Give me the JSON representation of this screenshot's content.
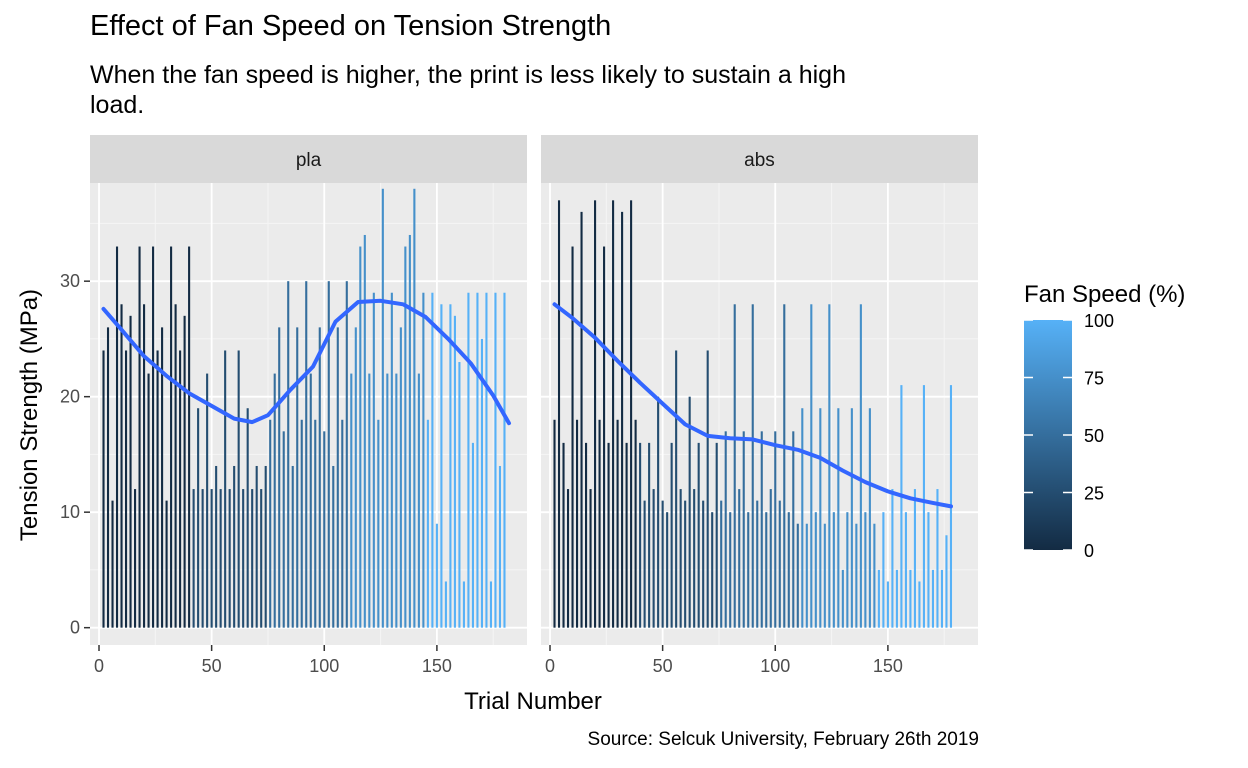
{
  "chart_data": {
    "type": "bar",
    "title": "Effect of Fan Speed on Tension Strength",
    "subtitle": "When the fan speed is higher, the print is less likely to sustain a high load.",
    "caption": "Source: Selcuk University, February 26th 2019",
    "xlabel": "Trial Number",
    "ylabel": "Tension Strength (MPa)",
    "xlim": [
      -4,
      190
    ],
    "ylim": [
      -1.5,
      38.5
    ],
    "x_ticks": [
      0,
      50,
      100,
      150
    ],
    "y_ticks": [
      0,
      10,
      20,
      30
    ],
    "grid": true,
    "color_scale": {
      "title": "Fan Speed (%)",
      "low_color": "#132B43",
      "high_color": "#56B1F7",
      "range": [
        0,
        100
      ],
      "ticks": [
        0,
        25,
        50,
        75,
        100
      ]
    },
    "legend_position": "right",
    "panels": [
      {
        "label": "pla",
        "smooth_color": "#3366FF",
        "bars": [
          {
            "x": 2,
            "y": 24,
            "fan": 0
          },
          {
            "x": 4,
            "y": 26,
            "fan": 0
          },
          {
            "x": 6,
            "y": 11,
            "fan": 0
          },
          {
            "x": 8,
            "y": 33,
            "fan": 0
          },
          {
            "x": 10,
            "y": 28,
            "fan": 0
          },
          {
            "x": 12,
            "y": 24,
            "fan": 0
          },
          {
            "x": 14,
            "y": 27,
            "fan": 0
          },
          {
            "x": 16,
            "y": 12,
            "fan": 0
          },
          {
            "x": 18,
            "y": 33,
            "fan": 0
          },
          {
            "x": 20,
            "y": 28,
            "fan": 0
          },
          {
            "x": 22,
            "y": 22,
            "fan": 0
          },
          {
            "x": 24,
            "y": 33,
            "fan": 0
          },
          {
            "x": 26,
            "y": 24,
            "fan": 0
          },
          {
            "x": 28,
            "y": 26,
            "fan": 0
          },
          {
            "x": 30,
            "y": 11,
            "fan": 0
          },
          {
            "x": 32,
            "y": 33,
            "fan": 0
          },
          {
            "x": 34,
            "y": 28,
            "fan": 0
          },
          {
            "x": 36,
            "y": 24,
            "fan": 0
          },
          {
            "x": 38,
            "y": 27,
            "fan": 0
          },
          {
            "x": 40,
            "y": 33,
            "fan": 0
          },
          {
            "x": 42,
            "y": 12,
            "fan": 25
          },
          {
            "x": 44,
            "y": 19,
            "fan": 25
          },
          {
            "x": 46,
            "y": 12,
            "fan": 25
          },
          {
            "x": 48,
            "y": 22,
            "fan": 25
          },
          {
            "x": 50,
            "y": 12,
            "fan": 25
          },
          {
            "x": 52,
            "y": 14,
            "fan": 25
          },
          {
            "x": 54,
            "y": 12,
            "fan": 25
          },
          {
            "x": 56,
            "y": 24,
            "fan": 25
          },
          {
            "x": 58,
            "y": 12,
            "fan": 25
          },
          {
            "x": 60,
            "y": 14,
            "fan": 25
          },
          {
            "x": 62,
            "y": 24,
            "fan": 25
          },
          {
            "x": 64,
            "y": 12,
            "fan": 25
          },
          {
            "x": 66,
            "y": 19,
            "fan": 25
          },
          {
            "x": 68,
            "y": 12,
            "fan": 25
          },
          {
            "x": 70,
            "y": 14,
            "fan": 25
          },
          {
            "x": 72,
            "y": 12,
            "fan": 25
          },
          {
            "x": 74,
            "y": 14,
            "fan": 25
          },
          {
            "x": 76,
            "y": 18,
            "fan": 50
          },
          {
            "x": 78,
            "y": 22,
            "fan": 50
          },
          {
            "x": 80,
            "y": 26,
            "fan": 50
          },
          {
            "x": 82,
            "y": 17,
            "fan": 50
          },
          {
            "x": 84,
            "y": 30,
            "fan": 50
          },
          {
            "x": 86,
            "y": 14,
            "fan": 50
          },
          {
            "x": 88,
            "y": 26,
            "fan": 50
          },
          {
            "x": 90,
            "y": 18,
            "fan": 50
          },
          {
            "x": 92,
            "y": 30,
            "fan": 50
          },
          {
            "x": 94,
            "y": 22,
            "fan": 50
          },
          {
            "x": 96,
            "y": 18,
            "fan": 50
          },
          {
            "x": 98,
            "y": 26,
            "fan": 50
          },
          {
            "x": 100,
            "y": 17,
            "fan": 50
          },
          {
            "x": 102,
            "y": 30,
            "fan": 50
          },
          {
            "x": 104,
            "y": 14,
            "fan": 50
          },
          {
            "x": 106,
            "y": 26,
            "fan": 50
          },
          {
            "x": 108,
            "y": 18,
            "fan": 50
          },
          {
            "x": 110,
            "y": 30,
            "fan": 50
          },
          {
            "x": 112,
            "y": 22,
            "fan": 75
          },
          {
            "x": 114,
            "y": 26,
            "fan": 75
          },
          {
            "x": 116,
            "y": 33,
            "fan": 75
          },
          {
            "x": 118,
            "y": 34,
            "fan": 75
          },
          {
            "x": 120,
            "y": 22,
            "fan": 75
          },
          {
            "x": 122,
            "y": 29,
            "fan": 75
          },
          {
            "x": 124,
            "y": 18,
            "fan": 75
          },
          {
            "x": 126,
            "y": 38,
            "fan": 75
          },
          {
            "x": 128,
            "y": 22,
            "fan": 75
          },
          {
            "x": 130,
            "y": 29,
            "fan": 75
          },
          {
            "x": 132,
            "y": 22,
            "fan": 75
          },
          {
            "x": 134,
            "y": 26,
            "fan": 75
          },
          {
            "x": 136,
            "y": 33,
            "fan": 75
          },
          {
            "x": 138,
            "y": 34,
            "fan": 75
          },
          {
            "x": 140,
            "y": 38,
            "fan": 75
          },
          {
            "x": 142,
            "y": 22,
            "fan": 75
          },
          {
            "x": 144,
            "y": 29,
            "fan": 75
          },
          {
            "x": 146,
            "y": 18,
            "fan": 100
          },
          {
            "x": 148,
            "y": 29,
            "fan": 100
          },
          {
            "x": 150,
            "y": 9,
            "fan": 100
          },
          {
            "x": 152,
            "y": 28,
            "fan": 100
          },
          {
            "x": 154,
            "y": 4,
            "fan": 100
          },
          {
            "x": 156,
            "y": 28,
            "fan": 100
          },
          {
            "x": 158,
            "y": 27,
            "fan": 100
          },
          {
            "x": 160,
            "y": 23,
            "fan": 100
          },
          {
            "x": 162,
            "y": 4,
            "fan": 100
          },
          {
            "x": 164,
            "y": 29,
            "fan": 100
          },
          {
            "x": 166,
            "y": 16,
            "fan": 100
          },
          {
            "x": 168,
            "y": 29,
            "fan": 100
          },
          {
            "x": 170,
            "y": 25,
            "fan": 100
          },
          {
            "x": 172,
            "y": 29,
            "fan": 100
          },
          {
            "x": 174,
            "y": 4,
            "fan": 100
          },
          {
            "x": 176,
            "y": 29,
            "fan": 100
          },
          {
            "x": 178,
            "y": 14,
            "fan": 100
          },
          {
            "x": 180,
            "y": 29,
            "fan": 100
          }
        ],
        "smooth": [
          {
            "x": 2,
            "y": 27.6
          },
          {
            "x": 10,
            "y": 25.8
          },
          {
            "x": 20,
            "y": 23.5
          },
          {
            "x": 30,
            "y": 21.8
          },
          {
            "x": 40,
            "y": 20.3
          },
          {
            "x": 50,
            "y": 19.2
          },
          {
            "x": 60,
            "y": 18.1
          },
          {
            "x": 68,
            "y": 17.8
          },
          {
            "x": 75,
            "y": 18.4
          },
          {
            "x": 85,
            "y": 20.6
          },
          {
            "x": 95,
            "y": 22.6
          },
          {
            "x": 105,
            "y": 26.5
          },
          {
            "x": 115,
            "y": 28.2
          },
          {
            "x": 125,
            "y": 28.3
          },
          {
            "x": 135,
            "y": 28.0
          },
          {
            "x": 145,
            "y": 26.9
          },
          {
            "x": 155,
            "y": 25.0
          },
          {
            "x": 165,
            "y": 22.9
          },
          {
            "x": 175,
            "y": 20.1
          },
          {
            "x": 182,
            "y": 17.7
          }
        ]
      },
      {
        "label": "abs",
        "smooth_color": "#3366FF",
        "bars": [
          {
            "x": 2,
            "y": 18,
            "fan": 0
          },
          {
            "x": 4,
            "y": 37,
            "fan": 0
          },
          {
            "x": 6,
            "y": 16,
            "fan": 0
          },
          {
            "x": 8,
            "y": 12,
            "fan": 0
          },
          {
            "x": 10,
            "y": 33,
            "fan": 0
          },
          {
            "x": 12,
            "y": 18,
            "fan": 0
          },
          {
            "x": 14,
            "y": 36,
            "fan": 0
          },
          {
            "x": 16,
            "y": 16,
            "fan": 0
          },
          {
            "x": 18,
            "y": 12,
            "fan": 0
          },
          {
            "x": 20,
            "y": 37,
            "fan": 0
          },
          {
            "x": 22,
            "y": 18,
            "fan": 0
          },
          {
            "x": 24,
            "y": 33,
            "fan": 0
          },
          {
            "x": 26,
            "y": 16,
            "fan": 0
          },
          {
            "x": 28,
            "y": 37,
            "fan": 0
          },
          {
            "x": 30,
            "y": 18,
            "fan": 0
          },
          {
            "x": 32,
            "y": 36,
            "fan": 0
          },
          {
            "x": 34,
            "y": 16,
            "fan": 0
          },
          {
            "x": 36,
            "y": 37,
            "fan": 0
          },
          {
            "x": 38,
            "y": 18,
            "fan": 0
          },
          {
            "x": 40,
            "y": 16,
            "fan": 25
          },
          {
            "x": 42,
            "y": 11,
            "fan": 25
          },
          {
            "x": 44,
            "y": 16,
            "fan": 25
          },
          {
            "x": 46,
            "y": 12,
            "fan": 25
          },
          {
            "x": 48,
            "y": 20,
            "fan": 25
          },
          {
            "x": 50,
            "y": 11,
            "fan": 25
          },
          {
            "x": 52,
            "y": 10,
            "fan": 25
          },
          {
            "x": 54,
            "y": 16,
            "fan": 25
          },
          {
            "x": 56,
            "y": 24,
            "fan": 25
          },
          {
            "x": 58,
            "y": 12,
            "fan": 25
          },
          {
            "x": 60,
            "y": 11,
            "fan": 25
          },
          {
            "x": 62,
            "y": 20,
            "fan": 25
          },
          {
            "x": 64,
            "y": 12,
            "fan": 25
          },
          {
            "x": 66,
            "y": 16,
            "fan": 25
          },
          {
            "x": 68,
            "y": 11,
            "fan": 25
          },
          {
            "x": 70,
            "y": 24,
            "fan": 25
          },
          {
            "x": 72,
            "y": 10,
            "fan": 25
          },
          {
            "x": 74,
            "y": 16,
            "fan": 25
          },
          {
            "x": 76,
            "y": 11,
            "fan": 50
          },
          {
            "x": 78,
            "y": 17,
            "fan": 50
          },
          {
            "x": 80,
            "y": 10,
            "fan": 50
          },
          {
            "x": 82,
            "y": 28,
            "fan": 50
          },
          {
            "x": 84,
            "y": 12,
            "fan": 50
          },
          {
            "x": 86,
            "y": 17,
            "fan": 50
          },
          {
            "x": 88,
            "y": 10,
            "fan": 50
          },
          {
            "x": 90,
            "y": 28,
            "fan": 50
          },
          {
            "x": 92,
            "y": 11,
            "fan": 50
          },
          {
            "x": 94,
            "y": 17,
            "fan": 50
          },
          {
            "x": 96,
            "y": 10,
            "fan": 50
          },
          {
            "x": 98,
            "y": 12,
            "fan": 50
          },
          {
            "x": 100,
            "y": 17,
            "fan": 50
          },
          {
            "x": 102,
            "y": 11,
            "fan": 50
          },
          {
            "x": 104,
            "y": 28,
            "fan": 50
          },
          {
            "x": 106,
            "y": 10,
            "fan": 50
          },
          {
            "x": 108,
            "y": 17,
            "fan": 50
          },
          {
            "x": 110,
            "y": 9,
            "fan": 50
          },
          {
            "x": 112,
            "y": 19,
            "fan": 75
          },
          {
            "x": 114,
            "y": 9,
            "fan": 75
          },
          {
            "x": 116,
            "y": 28,
            "fan": 75
          },
          {
            "x": 118,
            "y": 10,
            "fan": 75
          },
          {
            "x": 120,
            "y": 19,
            "fan": 75
          },
          {
            "x": 122,
            "y": 9,
            "fan": 75
          },
          {
            "x": 124,
            "y": 28,
            "fan": 75
          },
          {
            "x": 126,
            "y": 10,
            "fan": 75
          },
          {
            "x": 128,
            "y": 19,
            "fan": 75
          },
          {
            "x": 130,
            "y": 5,
            "fan": 75
          },
          {
            "x": 132,
            "y": 10,
            "fan": 75
          },
          {
            "x": 134,
            "y": 19,
            "fan": 75
          },
          {
            "x": 136,
            "y": 9,
            "fan": 75
          },
          {
            "x": 138,
            "y": 28,
            "fan": 75
          },
          {
            "x": 140,
            "y": 10,
            "fan": 75
          },
          {
            "x": 142,
            "y": 19,
            "fan": 75
          },
          {
            "x": 144,
            "y": 9,
            "fan": 75
          },
          {
            "x": 146,
            "y": 5,
            "fan": 100
          },
          {
            "x": 148,
            "y": 10,
            "fan": 100
          },
          {
            "x": 150,
            "y": 4,
            "fan": 100
          },
          {
            "x": 152,
            "y": 12,
            "fan": 100
          },
          {
            "x": 154,
            "y": 5,
            "fan": 100
          },
          {
            "x": 156,
            "y": 21,
            "fan": 100
          },
          {
            "x": 158,
            "y": 10,
            "fan": 100
          },
          {
            "x": 160,
            "y": 5,
            "fan": 100
          },
          {
            "x": 162,
            "y": 12,
            "fan": 100
          },
          {
            "x": 164,
            "y": 4,
            "fan": 100
          },
          {
            "x": 166,
            "y": 21,
            "fan": 100
          },
          {
            "x": 168,
            "y": 10,
            "fan": 100
          },
          {
            "x": 170,
            "y": 5,
            "fan": 100
          },
          {
            "x": 172,
            "y": 12,
            "fan": 100
          },
          {
            "x": 174,
            "y": 5,
            "fan": 100
          },
          {
            "x": 176,
            "y": 8,
            "fan": 100
          },
          {
            "x": 178,
            "y": 21,
            "fan": 100
          }
        ],
        "smooth": [
          {
            "x": 2,
            "y": 28.0
          },
          {
            "x": 10,
            "y": 26.8
          },
          {
            "x": 20,
            "y": 25.1
          },
          {
            "x": 30,
            "y": 23.1
          },
          {
            "x": 40,
            "y": 21.2
          },
          {
            "x": 50,
            "y": 19.4
          },
          {
            "x": 60,
            "y": 17.6
          },
          {
            "x": 70,
            "y": 16.6
          },
          {
            "x": 80,
            "y": 16.4
          },
          {
            "x": 90,
            "y": 16.3
          },
          {
            "x": 100,
            "y": 15.8
          },
          {
            "x": 110,
            "y": 15.4
          },
          {
            "x": 120,
            "y": 14.7
          },
          {
            "x": 130,
            "y": 13.6
          },
          {
            "x": 140,
            "y": 12.6
          },
          {
            "x": 150,
            "y": 11.8
          },
          {
            "x": 160,
            "y": 11.2
          },
          {
            "x": 170,
            "y": 10.8
          },
          {
            "x": 178,
            "y": 10.5
          }
        ]
      }
    ]
  }
}
